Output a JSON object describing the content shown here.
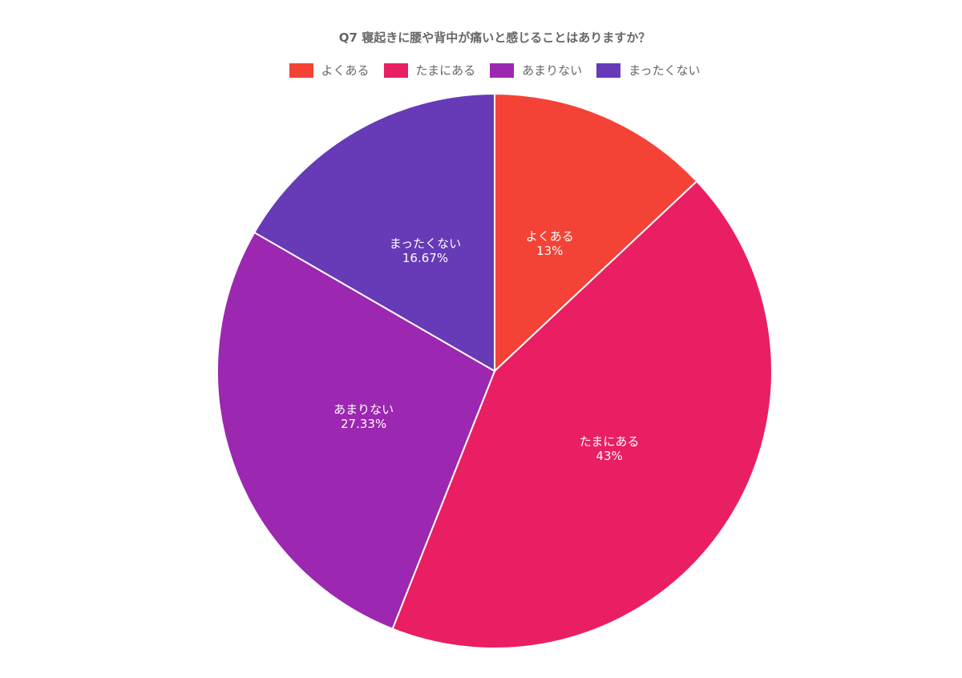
{
  "chart_data": {
    "type": "pie",
    "title": "Q7 寝起きに腰や背中が痛いと感じることはありますか？",
    "categories": [
      "よくある",
      "たまにある",
      "あまりない",
      "まったくない"
    ],
    "values": [
      13,
      43,
      27.33,
      16.67
    ],
    "value_labels": [
      "13%",
      "43%",
      "27.33%",
      "16.67%"
    ],
    "colors": [
      "#F44336",
      "#E91E63",
      "#9C27B0",
      "#673AB7"
    ],
    "legend_position": "top",
    "start_angle_deg": 0,
    "direction": "clockwise"
  },
  "legend": [
    {
      "label": "よくある",
      "color": "#F44336"
    },
    {
      "label": "たまにある",
      "color": "#E91E63"
    },
    {
      "label": "あまりない",
      "color": "#9C27B0"
    },
    {
      "label": "まったくない",
      "color": "#673AB7"
    }
  ]
}
